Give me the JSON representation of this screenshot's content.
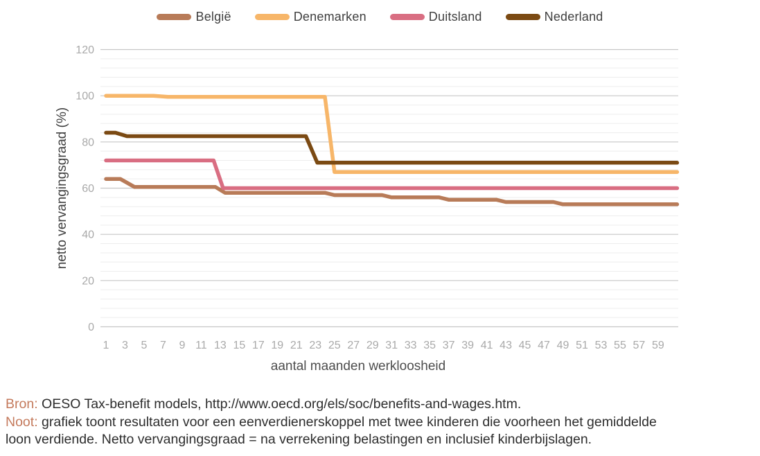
{
  "legend": {
    "items": [
      {
        "label": "België",
        "color": "#b87b58"
      },
      {
        "label": "Denemarken",
        "color": "#f7b669"
      },
      {
        "label": "Duitsland",
        "color": "#d96e82"
      },
      {
        "label": "Nederland",
        "color": "#7b4a13"
      }
    ]
  },
  "chart_data": {
    "type": "line",
    "title": "",
    "xlabel": "aantal maanden werkloosheid",
    "ylabel": "netto vervangingsgraad (%)",
    "xlim": [
      1,
      61
    ],
    "ylim": [
      0,
      120
    ],
    "y_ticks": [
      0,
      20,
      40,
      60,
      80,
      100,
      120
    ],
    "y_minor_step": 4,
    "x_tick_labels": [
      1,
      3,
      5,
      7,
      9,
      11,
      13,
      15,
      17,
      19,
      21,
      23,
      25,
      27,
      29,
      31,
      33,
      35,
      37,
      39,
      41,
      43,
      45,
      47,
      49,
      51,
      53,
      55,
      57,
      59
    ],
    "grid": {
      "major_color": "#c6c6c6",
      "minor_color": "#ededed"
    },
    "tick_label_color": "#a9a9a9",
    "axis_title_color": "#4d4d4d",
    "legend_position": "top-center",
    "series": [
      {
        "name": "België",
        "color": "#b87b58",
        "points": [
          [
            1,
            64
          ],
          [
            2.5,
            64
          ],
          [
            4,
            60.5
          ],
          [
            12.5,
            60.5
          ],
          [
            13.5,
            58
          ],
          [
            24,
            58
          ],
          [
            25,
            57
          ],
          [
            30,
            57
          ],
          [
            31,
            56
          ],
          [
            36,
            56
          ],
          [
            37,
            55
          ],
          [
            42,
            55
          ],
          [
            43,
            54
          ],
          [
            48,
            54
          ],
          [
            49,
            53
          ],
          [
            61,
            53
          ]
        ]
      },
      {
        "name": "Denemarken",
        "color": "#f7b669",
        "points": [
          [
            1,
            100
          ],
          [
            6,
            100
          ],
          [
            7.5,
            99.5
          ],
          [
            24,
            99.5
          ],
          [
            25,
            67
          ],
          [
            61,
            67
          ]
        ]
      },
      {
        "name": "Duitsland",
        "color": "#d96e82",
        "points": [
          [
            1,
            72
          ],
          [
            12.3,
            72
          ],
          [
            13.3,
            60
          ],
          [
            61,
            60
          ]
        ]
      },
      {
        "name": "Nederland",
        "color": "#7b4a13",
        "points": [
          [
            1,
            84
          ],
          [
            2,
            84
          ],
          [
            3.2,
            82.5
          ],
          [
            22,
            82.5
          ],
          [
            23.2,
            71
          ],
          [
            61,
            71
          ]
        ]
      }
    ]
  },
  "source": {
    "label": "Bron:",
    "text": "OESO Tax-benefit models, http://www.oecd.org/els/soc/benefits-and-wages.htm."
  },
  "note": {
    "label": "Noot:",
    "line1": "grafiek toont resultaten voor een eenverdienerskoppel met twee kinderen die voorheen het gemiddelde",
    "line2": "loon verdiende. Netto vervangingsgraad = na verrekening belastingen en inclusief kinderbijslagen."
  }
}
